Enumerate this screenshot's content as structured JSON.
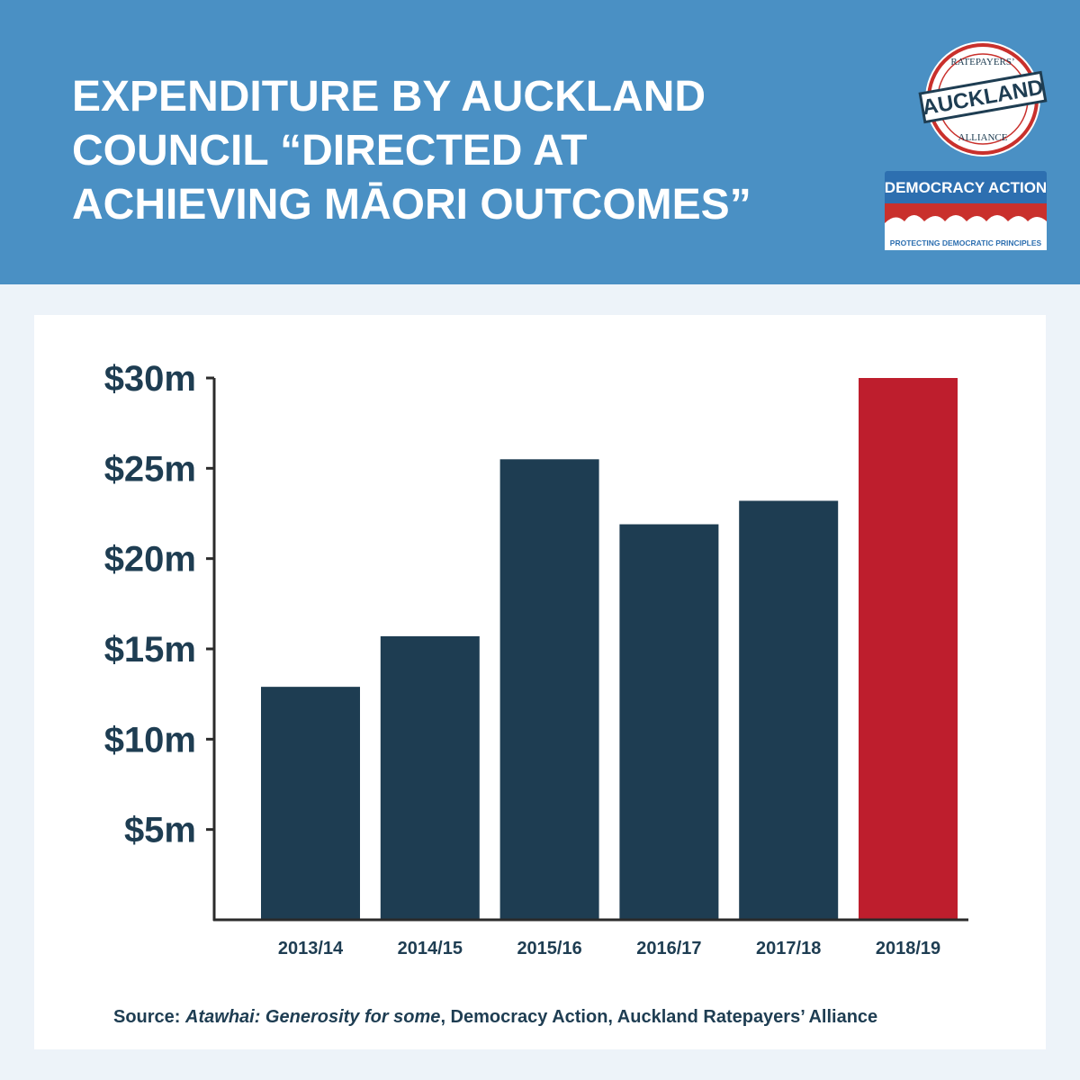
{
  "header": {
    "title_lines": [
      "EXPENDITURE BY AUCKLAND",
      "COUNCIL “DIRECTED AT",
      "ACHIEVING MĀORI OUTCOMES”"
    ]
  },
  "logos": {
    "ratepayers_top": "RATEPAYERS’",
    "ratepayers_main": "AUCKLAND",
    "ratepayers_bottom": "ALLIANCE",
    "democracy_main": "DEMOCRACY ACTION",
    "democracy_tagline": "PROTECTING DEMOCRATIC PRINCIPLES"
  },
  "chart_data": {
    "type": "bar",
    "categories": [
      "2013/14",
      "2014/15",
      "2015/16",
      "2016/17",
      "2017/18",
      "2018/19"
    ],
    "values": [
      12.9,
      15.7,
      25.5,
      21.9,
      23.2,
      30.0
    ],
    "colors": [
      "#1e3d52",
      "#1e3d52",
      "#1e3d52",
      "#1e3d52",
      "#1e3d52",
      "#be1e2d"
    ],
    "ylim": [
      0,
      30
    ],
    "yticks": [
      {
        "value": 5,
        "label": "$5m"
      },
      {
        "value": 10,
        "label": "$10m"
      },
      {
        "value": 15,
        "label": "$15m"
      },
      {
        "value": 20,
        "label": "$20m"
      },
      {
        "value": 25,
        "label": "$25m"
      },
      {
        "value": 30,
        "label": "$30m"
      }
    ],
    "grid": false
  },
  "source": {
    "label": "Source:",
    "title": "Atawhai: Generosity for some",
    "rest": ", Democracy Action, Auckland Ratepayers’ Alliance"
  }
}
